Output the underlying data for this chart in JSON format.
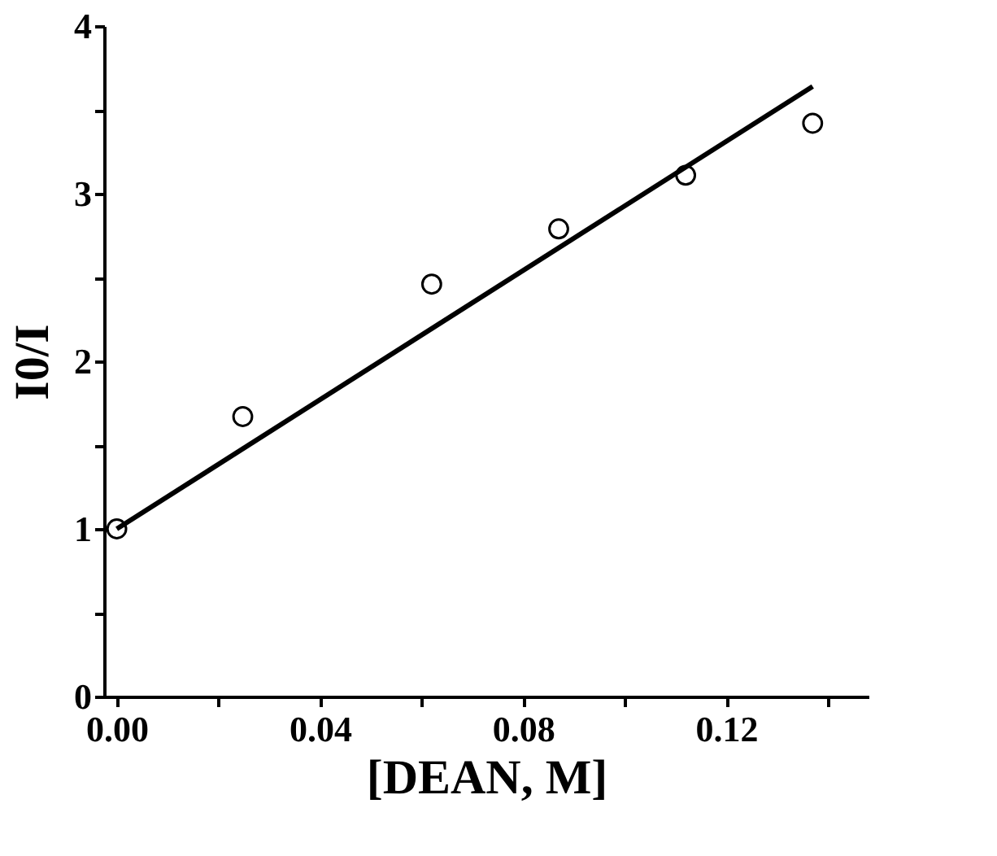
{
  "chart_data": {
    "type": "scatter",
    "xlabel": "[DEAN, M]",
    "ylabel": "I0/I",
    "x": [
      0.0,
      0.0248,
      0.062,
      0.087,
      0.112,
      0.137
    ],
    "series": [
      {
        "type": "scatter",
        "color": "#000000",
        "values": [
          1.0,
          1.67,
          2.46,
          2.79,
          3.11,
          3.42
        ],
        "marker": "circle"
      },
      {
        "type": "line",
        "color": "#000000",
        "x": [
          0.0,
          0.137
        ],
        "values": [
          1.0,
          3.64
        ],
        "line_style": "solid"
      }
    ],
    "xlim": [
      -0.0025,
      0.148
    ],
    "ylim": [
      0,
      4
    ],
    "xticks": [
      {
        "value": 0.0,
        "label": "0.00"
      },
      {
        "value": 0.02,
        "label": null
      },
      {
        "value": 0.04,
        "label": "0.04"
      },
      {
        "value": 0.06,
        "label": null
      },
      {
        "value": 0.08,
        "label": "0.08"
      },
      {
        "value": 0.1,
        "label": null
      },
      {
        "value": 0.12,
        "label": "0.12"
      },
      {
        "value": 0.14,
        "label": null
      }
    ],
    "yticks": [
      0,
      {
        "value": 0.5,
        "label": null
      },
      1,
      {
        "value": 1.5,
        "label": null
      },
      2,
      {
        "value": 2.5,
        "label": null
      },
      3,
      {
        "value": 3.5,
        "label": null
      },
      4
    ],
    "grid": false
  }
}
